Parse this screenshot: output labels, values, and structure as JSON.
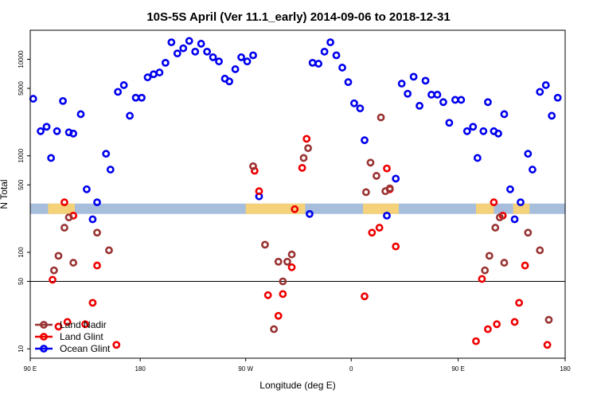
{
  "chart_data": {
    "type": "scatter",
    "title": "10S-5S April (Ver 11.1_early)   2014-09-06 to 2018-12-31",
    "xlabel": "Longitude (deg E)",
    "ylabel": "N Total",
    "y_scale": "log",
    "ylim": [
      8,
      20000
    ],
    "xlim": [
      0,
      360
    ],
    "x_note": "x is degrees of travel eastward starting at 90 E (0 = 90E, 90 = 180, 180 = 90W, 270 = 0, 360 = 180)",
    "x_ticks": [
      {
        "x": 0,
        "label": "90 E"
      },
      {
        "x": 74,
        "label": "180"
      },
      {
        "x": 145,
        "label": "90 W"
      },
      {
        "x": 216,
        "label": "0"
      },
      {
        "x": 288,
        "label": "90 E"
      },
      {
        "x": 360,
        "label": "180"
      }
    ],
    "y_ticks": [
      10,
      50,
      100,
      500,
      1000,
      5000,
      10000
    ],
    "hline": 50,
    "land_band": {
      "y_low": 250,
      "y_high": 320,
      "ocean_color": "#a6bddb",
      "land_color": "#f5d27a",
      "land_ranges": [
        [
          12,
          30
        ],
        [
          145,
          185
        ],
        [
          224,
          248
        ],
        [
          300,
          312
        ],
        [
          325,
          336
        ]
      ]
    },
    "legend": {
      "position": "bottom-left",
      "entries": [
        "Land Nadir",
        "Land Glint",
        "Ocean Glint"
      ]
    },
    "series": [
      {
        "name": "Ocean Glint",
        "color": "#0000ee",
        "points": [
          [
            2,
            3900
          ],
          [
            7,
            1800
          ],
          [
            11,
            2000
          ],
          [
            14,
            950
          ],
          [
            18,
            1800
          ],
          [
            22,
            3700
          ],
          [
            26,
            1750
          ],
          [
            29,
            1700
          ],
          [
            34,
            2700
          ],
          [
            38,
            450
          ],
          [
            42,
            220
          ],
          [
            45,
            330
          ],
          [
            51,
            1050
          ],
          [
            54,
            720
          ],
          [
            59,
            4600
          ],
          [
            63,
            5400
          ],
          [
            67,
            2600
          ],
          [
            71,
            4000
          ],
          [
            75,
            4000
          ],
          [
            79,
            6500
          ],
          [
            83,
            7000
          ],
          [
            87,
            7300
          ],
          [
            91,
            9200
          ],
          [
            95,
            15000
          ],
          [
            99,
            11500
          ],
          [
            103,
            13000
          ],
          [
            107,
            15500
          ],
          [
            111,
            12000
          ],
          [
            115,
            14500
          ],
          [
            119,
            12000
          ],
          [
            123,
            10500
          ],
          [
            127,
            9500
          ],
          [
            131,
            6300
          ],
          [
            134,
            5900
          ],
          [
            138,
            7900
          ],
          [
            142,
            10500
          ],
          [
            146,
            9500
          ],
          [
            150,
            11000
          ],
          [
            154,
            380
          ],
          [
            188,
            250
          ],
          [
            190,
            9200
          ],
          [
            194,
            9000
          ],
          [
            198,
            12000
          ],
          [
            202,
            15000
          ],
          [
            206,
            11000
          ],
          [
            210,
            8200
          ],
          [
            214,
            5800
          ],
          [
            218,
            3500
          ],
          [
            222,
            3100
          ],
          [
            225,
            1450
          ],
          [
            240,
            240
          ],
          [
            246,
            580
          ],
          [
            250,
            5600
          ],
          [
            254,
            4400
          ],
          [
            258,
            6600
          ],
          [
            262,
            3300
          ],
          [
            266,
            6000
          ],
          [
            270,
            4300
          ],
          [
            274,
            4300
          ],
          [
            278,
            3600
          ],
          [
            282,
            2200
          ],
          [
            286,
            3800
          ],
          [
            290,
            3800
          ],
          [
            294,
            1800
          ],
          [
            298,
            2000
          ],
          [
            301,
            950
          ],
          [
            305,
            1800
          ],
          [
            308,
            3600
          ],
          [
            312,
            1800
          ],
          [
            315,
            1700
          ],
          [
            319,
            2700
          ],
          [
            323,
            450
          ],
          [
            326,
            220
          ],
          [
            330,
            330
          ],
          [
            335,
            1050
          ],
          [
            338,
            720
          ],
          [
            343,
            4600
          ],
          [
            347,
            5400
          ],
          [
            351,
            2600
          ],
          [
            355,
            4000
          ]
        ]
      },
      {
        "name": "Land Glint",
        "color": "#ee0000",
        "points": [
          [
            15,
            52
          ],
          [
            19,
            17
          ],
          [
            23,
            330
          ],
          [
            25,
            19
          ],
          [
            29,
            240
          ],
          [
            37,
            18
          ],
          [
            42,
            30
          ],
          [
            45,
            73
          ],
          [
            58,
            11
          ],
          [
            151,
            700
          ],
          [
            154,
            430
          ],
          [
            160,
            36
          ],
          [
            167,
            22
          ],
          [
            170,
            37
          ],
          [
            176,
            70
          ],
          [
            178,
            280
          ],
          [
            183,
            750
          ],
          [
            186,
            1500
          ],
          [
            225,
            35
          ],
          [
            230,
            160
          ],
          [
            235,
            180
          ],
          [
            240,
            740
          ],
          [
            242,
            450
          ],
          [
            246,
            115
          ],
          [
            300,
            12
          ],
          [
            304,
            53
          ],
          [
            308,
            16
          ],
          [
            312,
            330
          ],
          [
            314,
            18
          ],
          [
            318,
            240
          ],
          [
            326,
            19
          ],
          [
            329,
            30
          ],
          [
            333,
            73
          ],
          [
            348,
            11
          ]
        ]
      },
      {
        "name": "Land Nadir",
        "color": "#993333",
        "points": [
          [
            16,
            65
          ],
          [
            19,
            92
          ],
          [
            23,
            180
          ],
          [
            26,
            230
          ],
          [
            29,
            78
          ],
          [
            45,
            160
          ],
          [
            53,
            105
          ],
          [
            150,
            780
          ],
          [
            158,
            120
          ],
          [
            164,
            16
          ],
          [
            167,
            80
          ],
          [
            170,
            50
          ],
          [
            173,
            80
          ],
          [
            176,
            95
          ],
          [
            184,
            950
          ],
          [
            187,
            1200
          ],
          [
            226,
            420
          ],
          [
            229,
            850
          ],
          [
            233,
            620
          ],
          [
            236,
            2500
          ],
          [
            239,
            430
          ],
          [
            242,
            460
          ],
          [
            306,
            65
          ],
          [
            309,
            92
          ],
          [
            313,
            180
          ],
          [
            316,
            230
          ],
          [
            319,
            78
          ],
          [
            335,
            160
          ],
          [
            343,
            105
          ],
          [
            349,
            20
          ]
        ]
      }
    ]
  }
}
